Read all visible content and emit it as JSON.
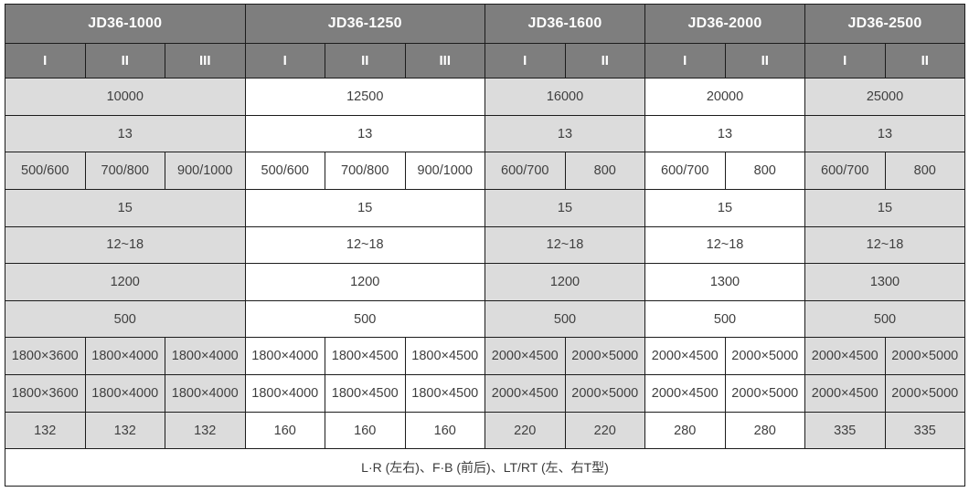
{
  "colors": {
    "header_bg": "#7e7e7e",
    "header_text": "#ffffff",
    "gray_cell_bg": "#dcdcdc",
    "white_cell_bg": "#ffffff",
    "border": "#1c1c1c",
    "data_text": "#3f3f3f"
  },
  "models": [
    "JD36-1000",
    "JD36-1250",
    "JD36-1600",
    "JD36-2000",
    "JD36-2500"
  ],
  "table": {
    "rows": [
      {
        "cls": "row-models",
        "header": true,
        "cells": [
          {
            "t": "JD36-1000",
            "s": 3
          },
          {
            "t": "JD36-1250",
            "s": 3
          },
          {
            "t": "JD36-1600",
            "s": 2
          },
          {
            "t": "JD36-2000",
            "s": 2
          },
          {
            "t": "JD36-2500",
            "s": 2
          }
        ]
      },
      {
        "cls": "row-subs",
        "header": true,
        "cells": [
          {
            "t": "I"
          },
          {
            "t": "II"
          },
          {
            "t": "III"
          },
          {
            "t": "I"
          },
          {
            "t": "II"
          },
          {
            "t": "III"
          },
          {
            "t": "I"
          },
          {
            "t": "II"
          },
          {
            "t": "I"
          },
          {
            "t": "II"
          },
          {
            "t": "I"
          },
          {
            "t": "II"
          }
        ]
      },
      {
        "cls": "row-data",
        "cells": [
          {
            "t": "10000",
            "s": 3,
            "bg": "gray"
          },
          {
            "t": "12500",
            "s": 3,
            "bg": "white"
          },
          {
            "t": "16000",
            "s": 2,
            "bg": "gray"
          },
          {
            "t": "20000",
            "s": 2,
            "bg": "white"
          },
          {
            "t": "25000",
            "s": 2,
            "bg": "gray"
          }
        ]
      },
      {
        "cls": "row-data",
        "cells": [
          {
            "t": "13",
            "s": 3,
            "bg": "gray"
          },
          {
            "t": "13",
            "s": 3,
            "bg": "white"
          },
          {
            "t": "13",
            "s": 2,
            "bg": "gray"
          },
          {
            "t": "13",
            "s": 2,
            "bg": "white"
          },
          {
            "t": "13",
            "s": 2,
            "bg": "gray"
          }
        ]
      },
      {
        "cls": "row-data",
        "cells": [
          {
            "t": "500/600",
            "bg": "gray"
          },
          {
            "t": "700/800",
            "bg": "gray"
          },
          {
            "t": "900/1000",
            "bg": "gray"
          },
          {
            "t": "500/600",
            "bg": "white"
          },
          {
            "t": "700/800",
            "bg": "white"
          },
          {
            "t": "900/1000",
            "bg": "white"
          },
          {
            "t": "600/700",
            "bg": "gray"
          },
          {
            "t": "800",
            "bg": "gray"
          },
          {
            "t": "600/700",
            "bg": "white"
          },
          {
            "t": "800",
            "bg": "white"
          },
          {
            "t": "600/700",
            "bg": "gray"
          },
          {
            "t": "800",
            "bg": "gray"
          }
        ]
      },
      {
        "cls": "row-data",
        "cells": [
          {
            "t": "15",
            "s": 3,
            "bg": "gray"
          },
          {
            "t": "15",
            "s": 3,
            "bg": "white"
          },
          {
            "t": "15",
            "s": 2,
            "bg": "gray"
          },
          {
            "t": "15",
            "s": 2,
            "bg": "white"
          },
          {
            "t": "15",
            "s": 2,
            "bg": "gray"
          }
        ]
      },
      {
        "cls": "row-data",
        "cells": [
          {
            "t": "12~18",
            "s": 3,
            "bg": "gray"
          },
          {
            "t": "12~18",
            "s": 3,
            "bg": "white"
          },
          {
            "t": "12~18",
            "s": 2,
            "bg": "gray"
          },
          {
            "t": "12~18",
            "s": 2,
            "bg": "white"
          },
          {
            "t": "12~18",
            "s": 2,
            "bg": "gray"
          }
        ]
      },
      {
        "cls": "row-data",
        "cells": [
          {
            "t": "1200",
            "s": 3,
            "bg": "gray"
          },
          {
            "t": "1200",
            "s": 3,
            "bg": "white"
          },
          {
            "t": "1200",
            "s": 2,
            "bg": "gray"
          },
          {
            "t": "1300",
            "s": 2,
            "bg": "white"
          },
          {
            "t": "1300",
            "s": 2,
            "bg": "gray"
          }
        ]
      },
      {
        "cls": "row-data",
        "cells": [
          {
            "t": "500",
            "s": 3,
            "bg": "gray"
          },
          {
            "t": "500",
            "s": 3,
            "bg": "white"
          },
          {
            "t": "500",
            "s": 2,
            "bg": "gray"
          },
          {
            "t": "500",
            "s": 2,
            "bg": "white"
          },
          {
            "t": "500",
            "s": 2,
            "bg": "gray"
          }
        ]
      },
      {
        "cls": "row-data",
        "cells": [
          {
            "t": "1800×3600",
            "bg": "gray"
          },
          {
            "t": "1800×4000",
            "bg": "gray"
          },
          {
            "t": "1800×4000",
            "bg": "gray"
          },
          {
            "t": "1800×4000",
            "bg": "white"
          },
          {
            "t": "1800×4500",
            "bg": "white"
          },
          {
            "t": "1800×4500",
            "bg": "white"
          },
          {
            "t": "2000×4500",
            "bg": "gray"
          },
          {
            "t": "2000×5000",
            "bg": "gray"
          },
          {
            "t": "2000×4500",
            "bg": "white"
          },
          {
            "t": "2000×5000",
            "bg": "white"
          },
          {
            "t": "2000×4500",
            "bg": "gray"
          },
          {
            "t": "2000×5000",
            "bg": "gray"
          }
        ]
      },
      {
        "cls": "row-data",
        "cells": [
          {
            "t": "1800×3600",
            "bg": "gray"
          },
          {
            "t": "1800×4000",
            "bg": "gray"
          },
          {
            "t": "1800×4000",
            "bg": "gray"
          },
          {
            "t": "1800×4000",
            "bg": "white"
          },
          {
            "t": "1800×4500",
            "bg": "white"
          },
          {
            "t": "1800×4500",
            "bg": "white"
          },
          {
            "t": "2000×4500",
            "bg": "gray"
          },
          {
            "t": "2000×5000",
            "bg": "gray"
          },
          {
            "t": "2000×4500",
            "bg": "white"
          },
          {
            "t": "2000×5000",
            "bg": "white"
          },
          {
            "t": "2000×4500",
            "bg": "gray"
          },
          {
            "t": "2000×5000",
            "bg": "gray"
          }
        ]
      },
      {
        "cls": "row-data",
        "cells": [
          {
            "t": "132",
            "bg": "gray"
          },
          {
            "t": "132",
            "bg": "gray"
          },
          {
            "t": "132",
            "bg": "gray"
          },
          {
            "t": "160",
            "bg": "white"
          },
          {
            "t": "160",
            "bg": "white"
          },
          {
            "t": "160",
            "bg": "white"
          },
          {
            "t": "220",
            "bg": "gray"
          },
          {
            "t": "220",
            "bg": "gray"
          },
          {
            "t": "280",
            "bg": "white"
          },
          {
            "t": "280",
            "bg": "white"
          },
          {
            "t": "335",
            "bg": "gray"
          },
          {
            "t": "335",
            "bg": "gray"
          }
        ]
      },
      {
        "cls": "row-footer",
        "cells": [
          {
            "t": "L·R (左右)、F·B (前后)、LT/RT (左、右T型)",
            "s": 12,
            "bg": "white"
          }
        ]
      }
    ]
  }
}
